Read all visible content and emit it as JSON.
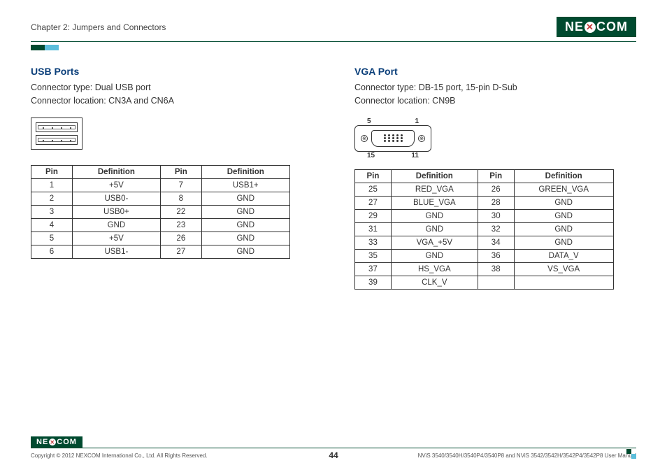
{
  "header": {
    "chapter": "Chapter 2: Jumpers and Connectors",
    "logo_pre": "NE",
    "logo_x": "✕",
    "logo_post": "COM"
  },
  "left": {
    "title": "USB Ports",
    "line1": "Connector type: Dual USB port",
    "line2": "Connector location: CN3A and CN6A",
    "table": {
      "headers": [
        "Pin",
        "Definition",
        "Pin",
        "Definition"
      ],
      "rows": [
        [
          "1",
          "+5V",
          "7",
          "USB1+"
        ],
        [
          "2",
          "USB0-",
          "8",
          "GND"
        ],
        [
          "3",
          "USB0+",
          "22",
          "GND"
        ],
        [
          "4",
          "GND",
          "23",
          "GND"
        ],
        [
          "5",
          "+5V",
          "26",
          "GND"
        ],
        [
          "6",
          "USB1-",
          "27",
          "GND"
        ]
      ]
    }
  },
  "right": {
    "title": "VGA Port",
    "line1": "Connector type: DB-15 port, 15-pin D-Sub",
    "line2": "Connector location: CN9B",
    "pin_top_left": "5",
    "pin_top_right": "1",
    "pin_bot_left": "15",
    "pin_bot_right": "11",
    "table": {
      "headers": [
        "Pin",
        "Definition",
        "Pin",
        "Definition"
      ],
      "rows": [
        [
          "25",
          "RED_VGA",
          "26",
          "GREEN_VGA"
        ],
        [
          "27",
          "BLUE_VGA",
          "28",
          "GND"
        ],
        [
          "29",
          "GND",
          "30",
          "GND"
        ],
        [
          "31",
          "GND",
          "32",
          "GND"
        ],
        [
          "33",
          "VGA_+5V",
          "34",
          "GND"
        ],
        [
          "35",
          "GND",
          "36",
          "DATA_V"
        ],
        [
          "37",
          "HS_VGA",
          "38",
          "VS_VGA"
        ],
        [
          "39",
          "CLK_V",
          "",
          ""
        ]
      ]
    }
  },
  "footer": {
    "copyright": "Copyright © 2012 NEXCOM International Co., Ltd. All Rights Reserved.",
    "page": "44",
    "manual": "NViS 3540/3540H/3540P4/3540P8 and NViS 3542/3542H/3542P4/3542P8 User Manual"
  }
}
